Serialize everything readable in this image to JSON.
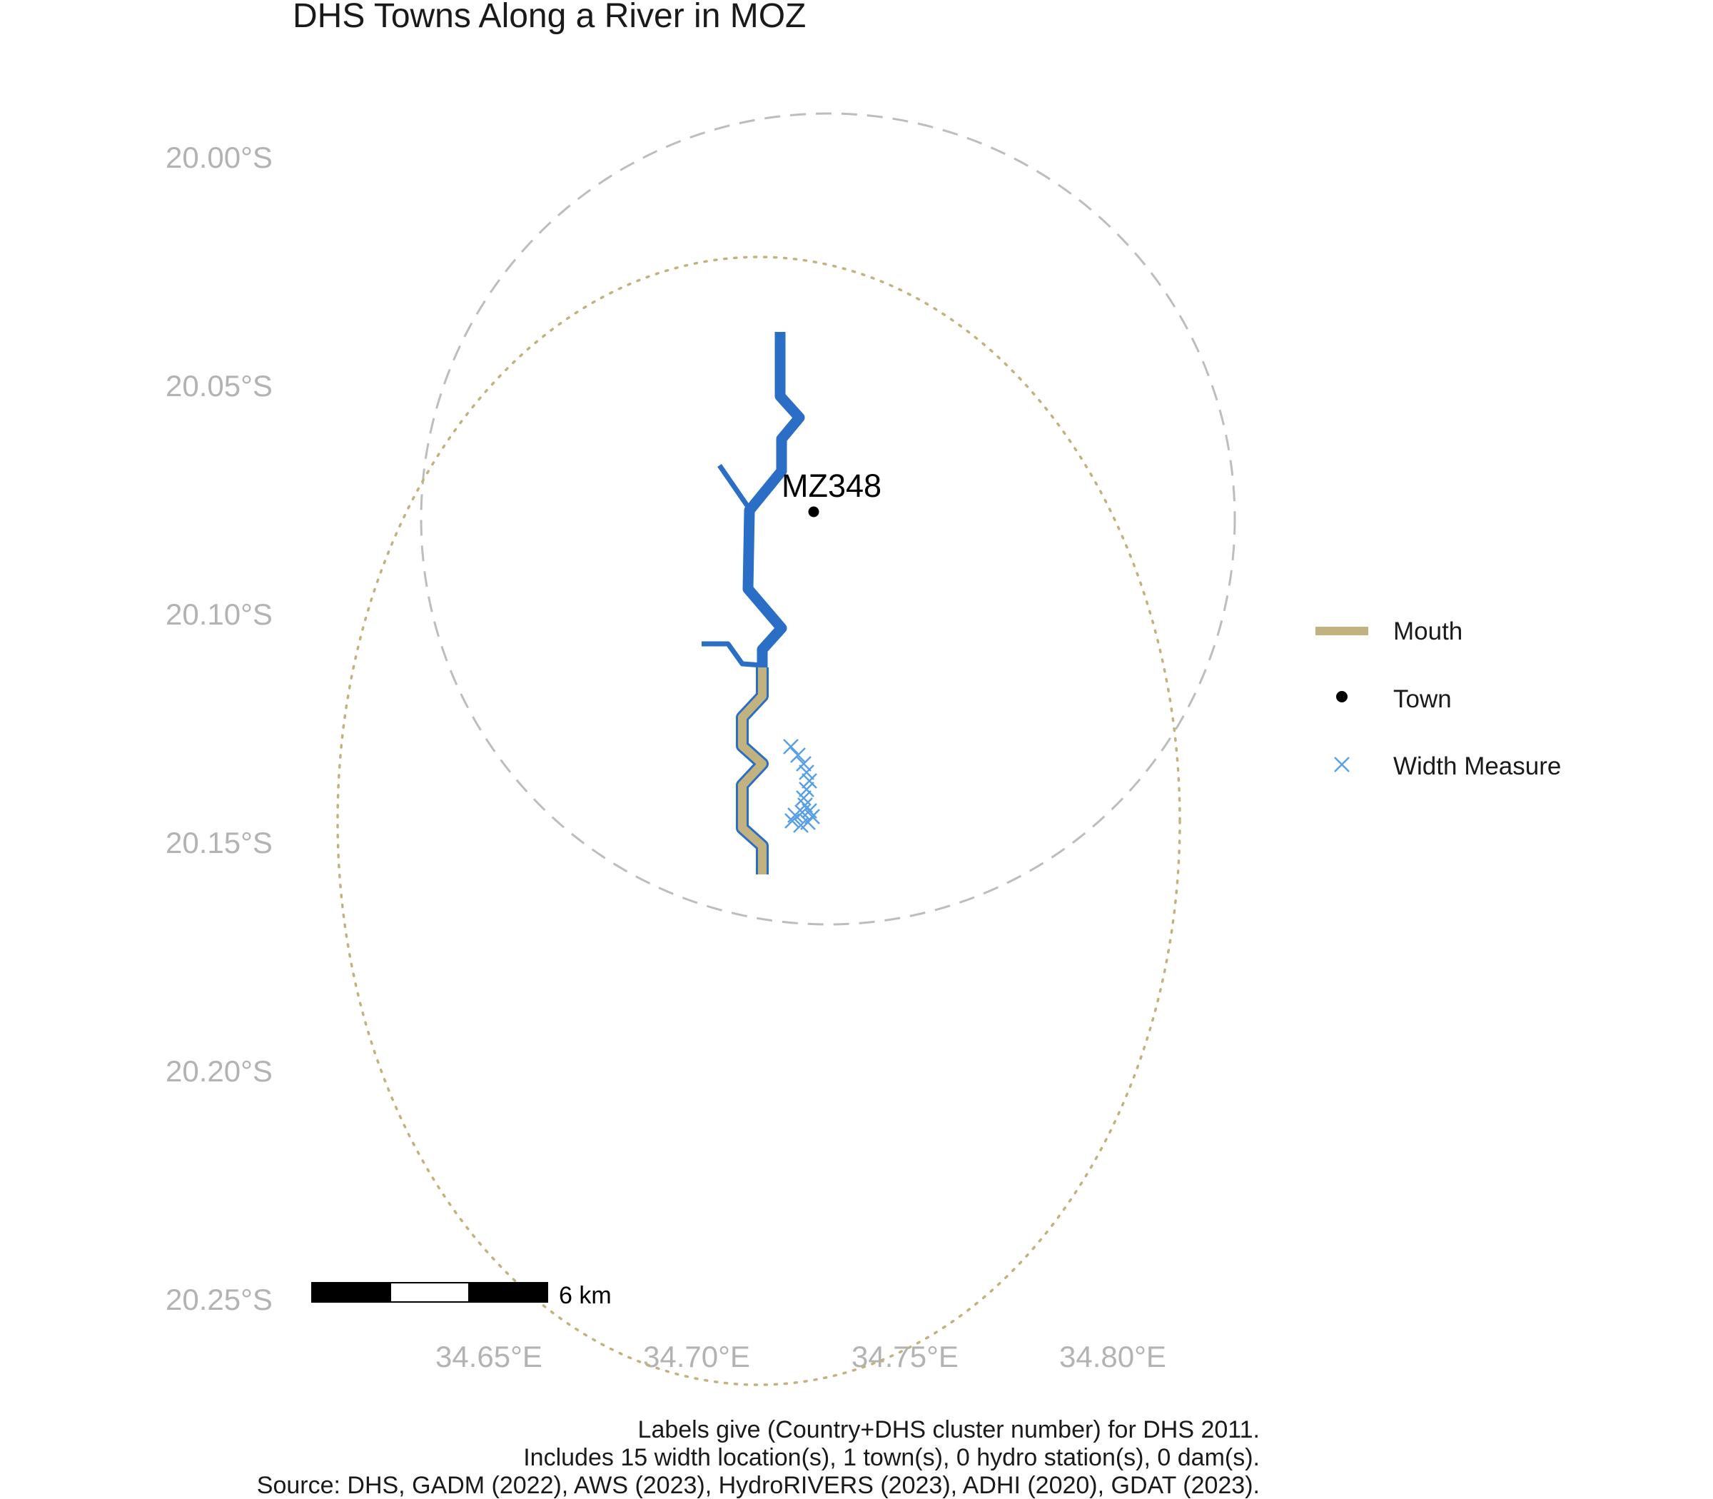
{
  "title": "DHS Towns Along a River in MOZ",
  "axes": {
    "y_ticks": [
      "20.00°S",
      "20.05°S",
      "20.10°S",
      "20.15°S",
      "20.20°S",
      "20.25°S"
    ],
    "x_ticks": [
      "34.65°E",
      "34.70°E",
      "34.75°E",
      "34.80°E"
    ]
  },
  "legend": {
    "position": "right",
    "items": [
      {
        "label": "Mouth",
        "symbol": "line",
        "color": "#c2b280"
      },
      {
        "label": "Town",
        "symbol": "point",
        "color": "#000000"
      },
      {
        "label": "Width Measure",
        "symbol": "cross",
        "color": "#5aa0e6"
      }
    ]
  },
  "towns": [
    {
      "label": "MZ348",
      "lon": 34.73,
      "lat": -20.08
    }
  ],
  "colors": {
    "river": "#2a6ec6",
    "mouth": "#c2b280",
    "width_measure": "#5aa0e6",
    "buffer_dashed": "#bdbdbd",
    "buffer_dotted": "#c2b280",
    "axis_text": "#b3b3b3"
  },
  "scale_bar": {
    "label": "6 km"
  },
  "caption": [
    "Labels give (Country+DHS cluster number) for DHS 2011.",
    "Includes 15 width location(s), 1 town(s), 0 hydro station(s), 0 dam(s).",
    "Source: DHS, GADM (2022), AWS (2023), HydroRIVERS (2023), ADHI (2020), GDAT (2023)."
  ]
}
